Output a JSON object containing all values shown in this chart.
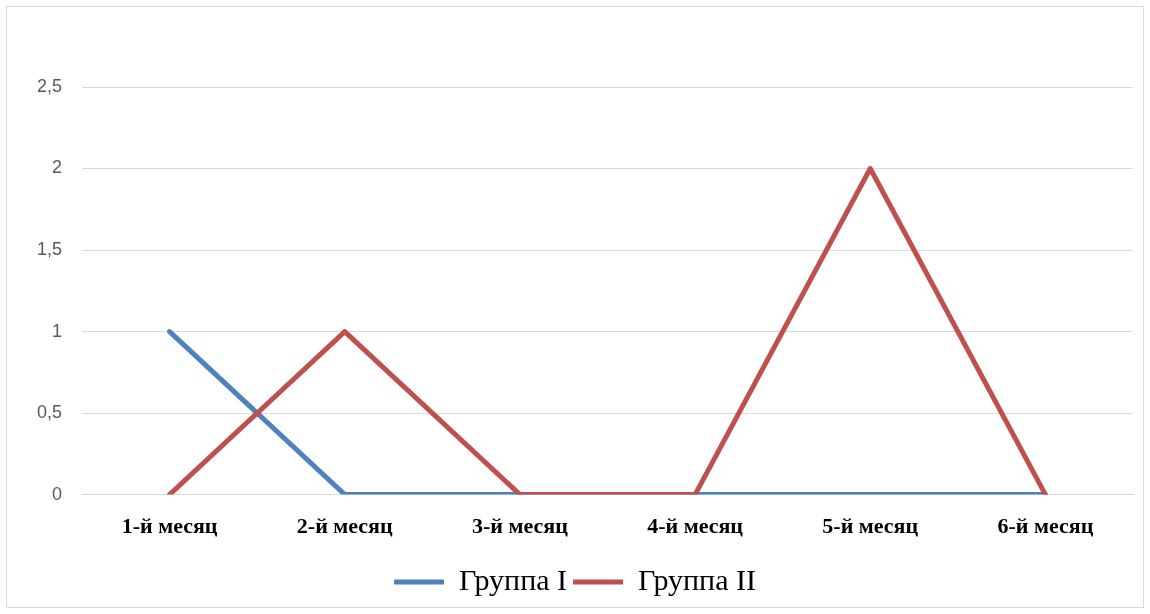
{
  "chart_data": {
    "type": "line",
    "categories": [
      "1-й месяц",
      "2-й месяц",
      "3-й месяц",
      "4-й месяц",
      "5-й месяц",
      "6-й месяц"
    ],
    "series": [
      {
        "name": "Группа I",
        "color": "#4f81bd",
        "values": [
          1,
          0,
          0,
          0,
          0,
          0
        ]
      },
      {
        "name": "Группа II",
        "color": "#c0504d",
        "values": [
          0,
          1,
          0,
          0,
          2,
          0
        ]
      }
    ],
    "ylim": [
      0,
      2.5
    ],
    "yticks": [
      0,
      {
        "value": 0.5,
        "label": "0,5"
      },
      1,
      {
        "value": 1.5,
        "label": "1,5"
      },
      2,
      {
        "value": 2.5,
        "label": "2,5"
      }
    ],
    "grid": "y",
    "legend": "bottom",
    "marker": "none",
    "line_style": "solid"
  }
}
